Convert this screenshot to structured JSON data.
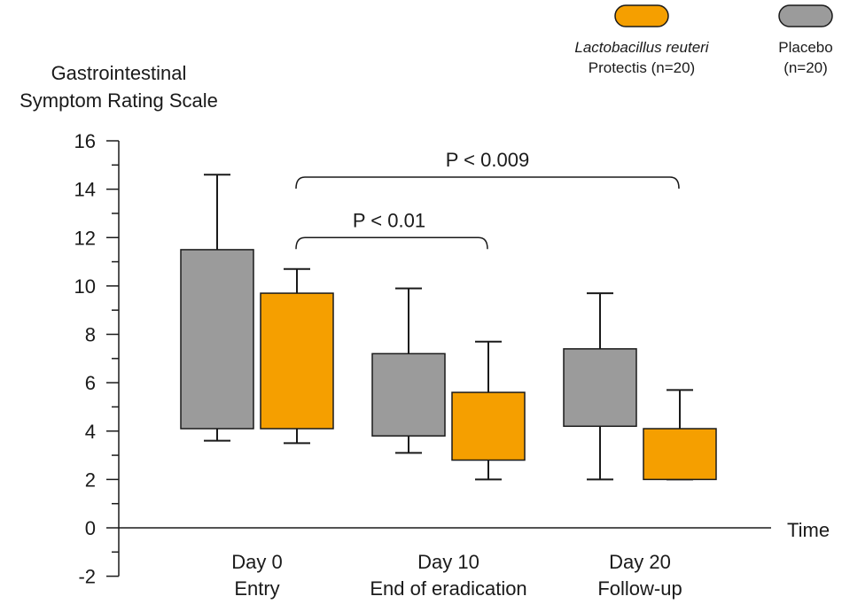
{
  "chart_data": {
    "type": "box",
    "ylabel_lines": [
      "Gastrointestinal",
      "Symptom Rating Scale"
    ],
    "xlabel": "Time",
    "ylim": [
      -2,
      16
    ],
    "yticks": [
      -2,
      0,
      2,
      4,
      6,
      8,
      10,
      12,
      14,
      16
    ],
    "grid": false,
    "legend_position": "top-right",
    "categories": [
      {
        "line1": "Day 0",
        "line2": "Entry"
      },
      {
        "line1": "Day 10",
        "line2": "End of eradication"
      },
      {
        "line1": "Day 20",
        "line2": "Follow-up"
      }
    ],
    "series": [
      {
        "key": "placebo",
        "legend_line1": "Placebo",
        "legend_line2": "(n=20)",
        "color": "#9b9b9b",
        "boxes": [
          {
            "low": 3.6,
            "q1": 4.1,
            "q3": 11.5,
            "high": 14.6
          },
          {
            "low": 3.1,
            "q1": 3.8,
            "q3": 7.2,
            "high": 9.9
          },
          {
            "low": 2.0,
            "q1": 4.2,
            "q3": 7.4,
            "high": 9.7
          }
        ]
      },
      {
        "key": "reuteri",
        "legend_line1": "Lactobacillus reuteri",
        "legend_line2": "Protectis (n=20)",
        "color": "#f59f00",
        "boxes": [
          {
            "low": 3.5,
            "q1": 4.1,
            "q3": 9.7,
            "high": 10.7
          },
          {
            "low": 2.0,
            "q1": 2.8,
            "q3": 5.6,
            "high": 7.7
          },
          {
            "low": 2.0,
            "q1": 2.0,
            "q3": 4.1,
            "high": 5.7
          }
        ]
      }
    ],
    "annotations": [
      {
        "text": "P < 0.01",
        "from_category": 0,
        "to_category": 1,
        "level": 12.0
      },
      {
        "text": "P < 0.009",
        "from_category": 0,
        "to_category": 2,
        "level": 14.5
      }
    ]
  }
}
